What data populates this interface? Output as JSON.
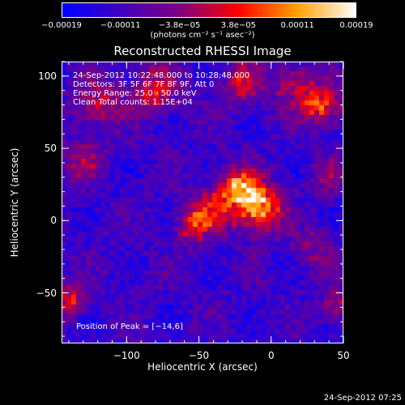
{
  "chart_data": {
    "type": "heatmap",
    "title": "Reconstructed RHESSI Image",
    "xlabel": "Heliocentric X (arcsec)",
    "ylabel": "Heliocentric Y (arcsec)",
    "xlim": [
      -145,
      50
    ],
    "ylim": [
      -85,
      110
    ],
    "xticks": [
      -100,
      -50,
      0,
      50
    ],
    "xtick_labels": [
      "−100",
      "−50",
      "0",
      "50"
    ],
    "yticks": [
      -50,
      0,
      50,
      100
    ],
    "ytick_labels": [
      "−50",
      "0",
      "50",
      "100"
    ],
    "colorbar": {
      "min": -0.00019,
      "max": 0.00019,
      "tick_labels": [
        "−0.00019",
        "−0.00011",
        "−3.8e−05",
        "3.8e−05",
        "0.00011",
        "0.00019"
      ],
      "units": "(photons cm⁻² s⁻¹ asec⁻²)",
      "colors": [
        "#0000ff",
        "#4000c0",
        "#7f007f",
        "#ff0000",
        "#ffa000",
        "#ffffff"
      ]
    },
    "annotations": [
      "24-Sep-2012 10:22:48.000 to 10:28:48.000",
      "Detectors: 3F 5F 6F 7F 8F 9F, Att 0",
      "Energy Range: 25.0 - 50.0 keV",
      "Clean     Total counts: 1.15E+04"
    ],
    "peak_label": "Position of Peak = [−14,6]",
    "peak": [
      -14,
      6
    ],
    "sources": [
      {
        "x": -10,
        "y": 10,
        "intensity": 0.00019,
        "width": 12
      },
      {
        "x": -25,
        "y": 22,
        "intensity": 0.00013,
        "width": 10
      },
      {
        "x": -45,
        "y": 5,
        "intensity": 0.0001,
        "width": 10
      },
      {
        "x": -55,
        "y": -5,
        "intensity": 8e-05,
        "width": 8
      },
      {
        "x": 35,
        "y": 80,
        "intensity": 0.00014,
        "width": 10
      },
      {
        "x": 15,
        "y": 95,
        "intensity": 9e-05,
        "width": 10
      },
      {
        "x": -120,
        "y": 80,
        "intensity": 9e-05,
        "width": 12
      },
      {
        "x": -80,
        "y": 90,
        "intensity": 0.0001,
        "width": 12
      },
      {
        "x": -20,
        "y": 95,
        "intensity": 9e-05,
        "width": 10
      },
      {
        "x": -140,
        "y": -55,
        "intensity": 0.00012,
        "width": 8
      },
      {
        "x": 45,
        "y": -60,
        "intensity": 9e-05,
        "width": 8
      },
      {
        "x": -130,
        "y": 40,
        "intensity": 7e-05,
        "width": 10
      },
      {
        "x": 30,
        "y": -20,
        "intensity": 6e-05,
        "width": 10
      },
      {
        "x": 40,
        "y": 30,
        "intensity": 6e-05,
        "width": 8
      }
    ],
    "grid": false
  },
  "footer": "24-Sep-2012 07:25"
}
